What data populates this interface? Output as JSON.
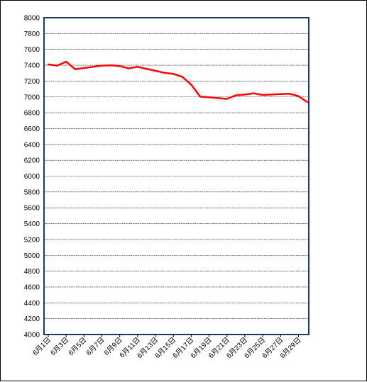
{
  "chart_data": {
    "type": "line",
    "title": "",
    "xlabel": "",
    "ylabel": "",
    "ylim": [
      4000,
      8000
    ],
    "y_ticks": [
      "4000",
      "4200",
      "4400",
      "4600",
      "4800",
      "5000",
      "5200",
      "5400",
      "5600",
      "5800",
      "6000",
      "6200",
      "6400",
      "6600",
      "6800",
      "7000",
      "7200",
      "7400",
      "7600",
      "7800",
      "8000"
    ],
    "x_tick_labels": [
      "6月1日",
      "6月3日",
      "6月5日",
      "6月7日",
      "6月9日",
      "6月11日",
      "6月13日",
      "6月15日",
      "6月17日",
      "6月19日",
      "6月21日",
      "6月23日",
      "6月25日",
      "6月27日",
      "6月29日"
    ],
    "grid": true,
    "legend": "none",
    "colors": {
      "line": "#ff0000",
      "plot_border": "#1f3864",
      "grid": "#000000"
    },
    "series": [
      {
        "x": [
          1,
          2,
          3,
          4,
          5,
          6,
          7,
          8,
          9,
          10,
          11,
          12,
          13,
          14,
          15,
          16,
          17,
          18,
          19,
          20,
          21,
          22,
          23,
          24,
          25,
          26,
          27,
          28,
          29,
          30
        ],
        "values": [
          7410,
          7395,
          7445,
          7350,
          7365,
          7380,
          7395,
          7400,
          7390,
          7360,
          7380,
          7355,
          7330,
          7305,
          7290,
          7255,
          7155,
          7005,
          6995,
          6985,
          6975,
          7020,
          7030,
          7045,
          7025,
          7030,
          7035,
          7040,
          7010,
          6935
        ]
      }
    ]
  }
}
